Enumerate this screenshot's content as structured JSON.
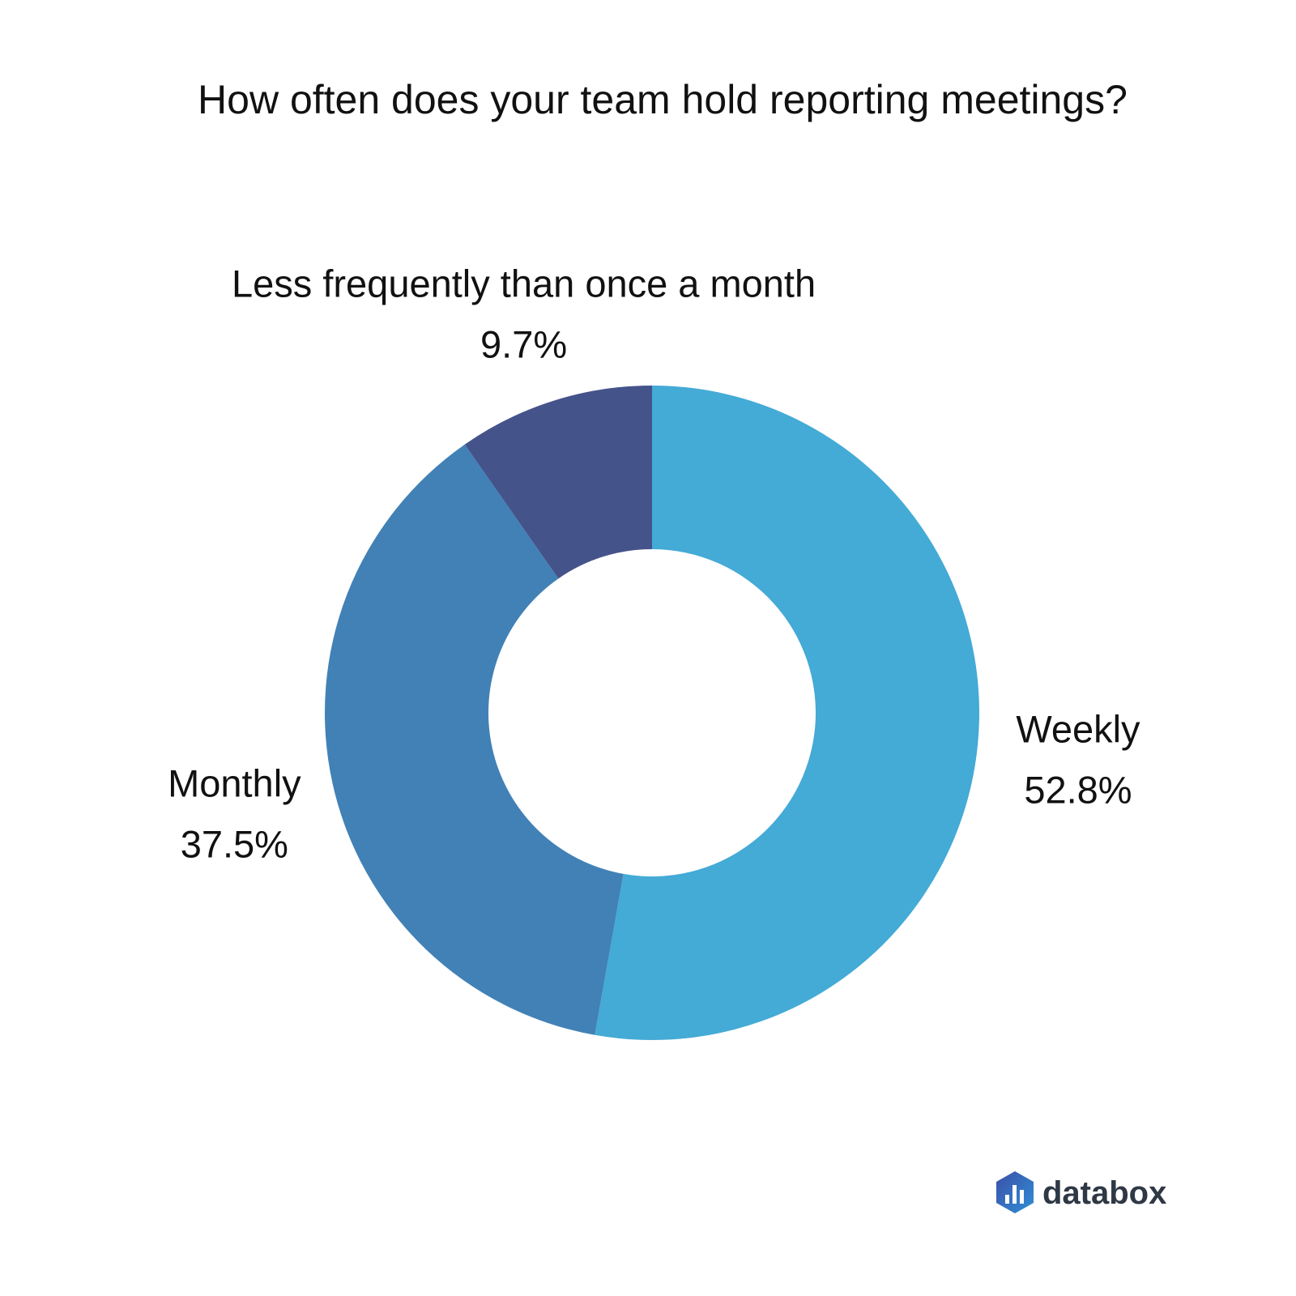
{
  "chart_data": {
    "type": "pie",
    "variant": "donut",
    "title": "How often does your team hold reporting meetings?",
    "slices": [
      {
        "label": "Weekly",
        "value": 52.8,
        "value_label": "52.8%",
        "color": "#44aad6"
      },
      {
        "label": "Monthly",
        "value": 37.5,
        "value_label": "37.5%",
        "color": "#4181b6"
      },
      {
        "label": "Less frequently than once a month",
        "value": 9.7,
        "value_label": "9.7%",
        "color": "#45538b"
      }
    ],
    "start_angle_deg": 0,
    "direction": "clockwise",
    "legend": "none"
  },
  "branding": {
    "logo_text": "databox",
    "logo_icon": "databox-hexagon-bars-icon",
    "logo_colors": [
      "#3c4fa8",
      "#2f8fd6",
      "#2f3845"
    ]
  }
}
